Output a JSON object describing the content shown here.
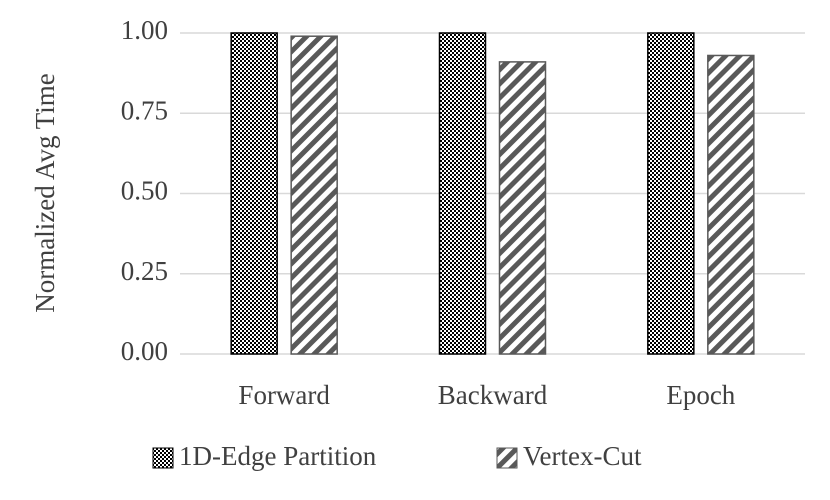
{
  "chart_data": {
    "type": "bar",
    "y_label": "Normalized Avg Time",
    "categories": [
      "Forward",
      "Backward",
      "Epoch"
    ],
    "series": [
      {
        "name": "1D-Edge Partition",
        "color": "#000000",
        "pattern": "checker",
        "values": [
          1.0,
          1.0,
          1.0
        ]
      },
      {
        "name": "Vertex-Cut",
        "color": "#595959",
        "pattern": "diagonal",
        "values": [
          0.99,
          0.91,
          0.93
        ]
      }
    ],
    "ylim": [
      0,
      1
    ],
    "yticks": [
      {
        "value": 0,
        "label": "0.00"
      },
      {
        "value": 0.25,
        "label": "0.25"
      },
      {
        "value": 0.5,
        "label": "0.50"
      },
      {
        "value": 0.75,
        "label": "0.75"
      },
      {
        "value": 1,
        "label": "1.00"
      }
    ],
    "grid": true,
    "legend": "bottom"
  }
}
